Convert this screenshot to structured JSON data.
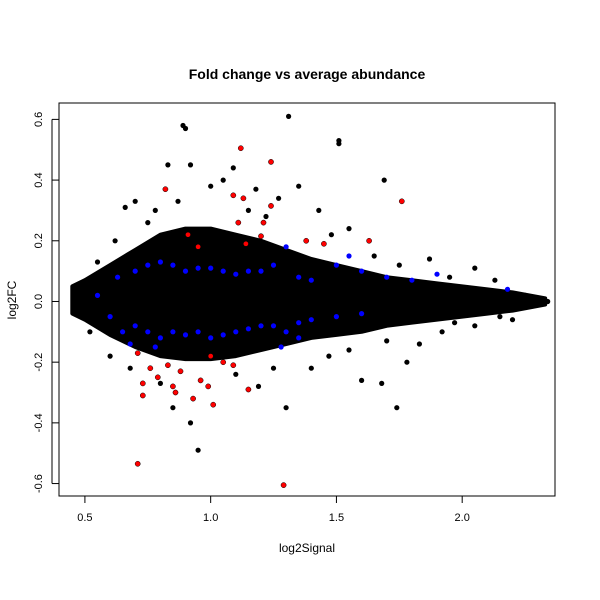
{
  "chart_data": {
    "type": "scatter",
    "title": "Fold change vs average abundance",
    "xlabel": "log2Signal",
    "ylabel": "log2FC",
    "xlim": [
      0.397,
      2.369
    ],
    "ylim": [
      -0.641,
      0.654
    ],
    "xticks": [
      0.5,
      1.0,
      1.5,
      2.0
    ],
    "xtick_labels": [
      "0.5",
      "1.0",
      "1.5",
      "2.0"
    ],
    "yticks": [
      -0.6,
      -0.4,
      -0.2,
      0.0,
      0.2,
      0.4,
      0.6
    ],
    "ytick_labels": [
      "-0.6",
      "-0.4",
      "-0.2",
      "0.0",
      "0.2",
      "0.4",
      "0.6"
    ],
    "grid": false,
    "colors": {
      "all": "#000000",
      "blue": "#0000ff",
      "red": "#ff0000"
    },
    "dense_core_envelope": {
      "color": "#000000",
      "upper": [
        [
          0.45,
          0.05
        ],
        [
          0.5,
          0.07
        ],
        [
          0.6,
          0.12
        ],
        [
          0.7,
          0.17
        ],
        [
          0.8,
          0.22
        ],
        [
          0.9,
          0.24
        ],
        [
          1.0,
          0.24
        ],
        [
          1.1,
          0.22
        ],
        [
          1.2,
          0.2
        ],
        [
          1.3,
          0.17
        ],
        [
          1.4,
          0.14
        ],
        [
          1.5,
          0.12
        ],
        [
          1.6,
          0.1
        ],
        [
          1.7,
          0.08
        ],
        [
          1.8,
          0.07
        ],
        [
          1.9,
          0.06
        ],
        [
          2.0,
          0.05
        ],
        [
          2.1,
          0.04
        ],
        [
          2.2,
          0.03
        ],
        [
          2.33,
          0.01
        ]
      ],
      "lower": [
        [
          2.33,
          -0.01
        ],
        [
          2.2,
          -0.03
        ],
        [
          2.1,
          -0.04
        ],
        [
          2.0,
          -0.05
        ],
        [
          1.9,
          -0.06
        ],
        [
          1.8,
          -0.07
        ],
        [
          1.7,
          -0.08
        ],
        [
          1.6,
          -0.1
        ],
        [
          1.5,
          -0.11
        ],
        [
          1.4,
          -0.12
        ],
        [
          1.3,
          -0.14
        ],
        [
          1.2,
          -0.16
        ],
        [
          1.1,
          -0.18
        ],
        [
          1.0,
          -0.19
        ],
        [
          0.9,
          -0.19
        ],
        [
          0.8,
          -0.18
        ],
        [
          0.7,
          -0.15
        ],
        [
          0.6,
          -0.11
        ],
        [
          0.5,
          -0.06
        ],
        [
          0.45,
          -0.04
        ]
      ]
    },
    "series": [
      {
        "name": "all",
        "color": "#000000",
        "points": [
          [
            0.89,
            0.58
          ],
          [
            0.9,
            0.57
          ],
          [
            1.31,
            0.61
          ],
          [
            1.51,
            0.53
          ],
          [
            1.51,
            0.52
          ],
          [
            0.83,
            0.45
          ],
          [
            0.92,
            0.45
          ],
          [
            1.09,
            0.44
          ],
          [
            1.69,
            0.4
          ],
          [
            0.95,
            -0.49
          ],
          [
            1.3,
            -0.35
          ],
          [
            1.74,
            -0.35
          ],
          [
            0.92,
            -0.4
          ],
          [
            0.85,
            -0.35
          ],
          [
            1.19,
            -0.28
          ],
          [
            1.6,
            -0.26
          ],
          [
            1.68,
            -0.27
          ],
          [
            1.78,
            -0.2
          ],
          [
            0.7,
            0.33
          ],
          [
            0.66,
            0.31
          ],
          [
            1.0,
            0.38
          ],
          [
            1.18,
            0.37
          ],
          [
            1.35,
            0.38
          ],
          [
            1.43,
            0.3
          ],
          [
            1.55,
            0.24
          ],
          [
            1.87,
            0.14
          ],
          [
            2.05,
            0.11
          ],
          [
            2.13,
            0.07
          ],
          [
            2.2,
            -0.06
          ],
          [
            2.3,
            0.0
          ],
          [
            2.34,
            0.0
          ],
          [
            1.92,
            -0.1
          ],
          [
            1.97,
            -0.07
          ],
          [
            1.83,
            -0.14
          ],
          [
            0.62,
            0.2
          ],
          [
            0.6,
            -0.18
          ],
          [
            0.55,
            0.13
          ],
          [
            0.52,
            -0.1
          ],
          [
            0.78,
            0.3
          ],
          [
            1.05,
            0.4
          ],
          [
            1.27,
            0.34
          ],
          [
            1.4,
            -0.22
          ],
          [
            1.47,
            -0.18
          ],
          [
            0.75,
            0.26
          ],
          [
            0.87,
            0.33
          ],
          [
            1.15,
            0.3
          ],
          [
            1.22,
            0.28
          ],
          [
            1.48,
            0.22
          ],
          [
            1.65,
            0.15
          ],
          [
            1.75,
            0.12
          ],
          [
            1.95,
            0.08
          ],
          [
            2.25,
            0.02
          ],
          [
            0.68,
            -0.22
          ],
          [
            0.8,
            -0.27
          ],
          [
            1.1,
            -0.24
          ],
          [
            1.25,
            -0.22
          ],
          [
            1.55,
            -0.16
          ],
          [
            1.7,
            -0.13
          ],
          [
            2.05,
            -0.08
          ],
          [
            2.15,
            -0.05
          ],
          [
            0.48,
            0.03
          ],
          [
            0.47,
            -0.03
          ]
        ]
      },
      {
        "name": "blue",
        "color": "#0000ff",
        "points": [
          [
            0.55,
            0.02
          ],
          [
            0.6,
            -0.05
          ],
          [
            0.65,
            -0.1
          ],
          [
            0.7,
            -0.08
          ],
          [
            0.75,
            -0.1
          ],
          [
            0.8,
            -0.12
          ],
          [
            0.85,
            -0.1
          ],
          [
            0.9,
            -0.11
          ],
          [
            0.95,
            -0.1
          ],
          [
            1.0,
            -0.12
          ],
          [
            1.05,
            -0.11
          ],
          [
            1.1,
            -0.1
          ],
          [
            1.15,
            -0.09
          ],
          [
            1.2,
            -0.08
          ],
          [
            1.25,
            -0.08
          ],
          [
            1.3,
            -0.1
          ],
          [
            1.35,
            -0.07
          ],
          [
            1.4,
            -0.06
          ],
          [
            1.5,
            -0.05
          ],
          [
            1.6,
            -0.04
          ],
          [
            0.7,
            0.1
          ],
          [
            0.75,
            0.12
          ],
          [
            0.8,
            0.13
          ],
          [
            0.85,
            0.12
          ],
          [
            0.9,
            0.1
          ],
          [
            0.95,
            0.11
          ],
          [
            1.0,
            0.11
          ],
          [
            1.05,
            0.1
          ],
          [
            1.1,
            0.09
          ],
          [
            1.15,
            0.1
          ],
          [
            1.2,
            0.1
          ],
          [
            1.25,
            0.12
          ],
          [
            1.3,
            0.18
          ],
          [
            1.35,
            0.08
          ],
          [
            1.4,
            0.07
          ],
          [
            1.5,
            0.12
          ],
          [
            1.6,
            0.1
          ],
          [
            1.7,
            0.08
          ],
          [
            1.8,
            0.07
          ],
          [
            1.9,
            0.09
          ],
          [
            2.18,
            0.04
          ],
          [
            1.55,
            0.15
          ],
          [
            0.68,
            -0.14
          ],
          [
            0.78,
            -0.15
          ],
          [
            1.28,
            -0.15
          ],
          [
            1.35,
            -0.12
          ],
          [
            0.63,
            0.08
          ]
        ]
      },
      {
        "name": "red",
        "color": "#ff0000",
        "points": [
          [
            0.71,
            -0.535
          ],
          [
            1.29,
            -0.605
          ],
          [
            1.12,
            0.505
          ],
          [
            1.24,
            0.46
          ],
          [
            1.76,
            0.33
          ],
          [
            0.82,
            0.37
          ],
          [
            1.13,
            0.34
          ],
          [
            1.24,
            0.315
          ],
          [
            1.11,
            0.26
          ],
          [
            1.21,
            0.26
          ],
          [
            1.2,
            0.215
          ],
          [
            1.14,
            0.19
          ],
          [
            0.91,
            0.22
          ],
          [
            0.95,
            0.18
          ],
          [
            1.38,
            0.2
          ],
          [
            1.45,
            0.19
          ],
          [
            1.63,
            0.2
          ],
          [
            1.09,
            0.35
          ],
          [
            0.76,
            -0.22
          ],
          [
            0.73,
            -0.27
          ],
          [
            0.73,
            -0.31
          ],
          [
            0.79,
            -0.25
          ],
          [
            0.85,
            -0.28
          ],
          [
            0.86,
            -0.3
          ],
          [
            0.96,
            -0.26
          ],
          [
            0.99,
            -0.28
          ],
          [
            1.01,
            -0.34
          ],
          [
            1.05,
            -0.2
          ],
          [
            1.09,
            -0.21
          ],
          [
            1.15,
            -0.29
          ],
          [
            0.93,
            -0.32
          ],
          [
            0.88,
            -0.23
          ],
          [
            1.0,
            -0.18
          ],
          [
            0.71,
            -0.17
          ],
          [
            0.83,
            -0.21
          ]
        ]
      }
    ]
  }
}
